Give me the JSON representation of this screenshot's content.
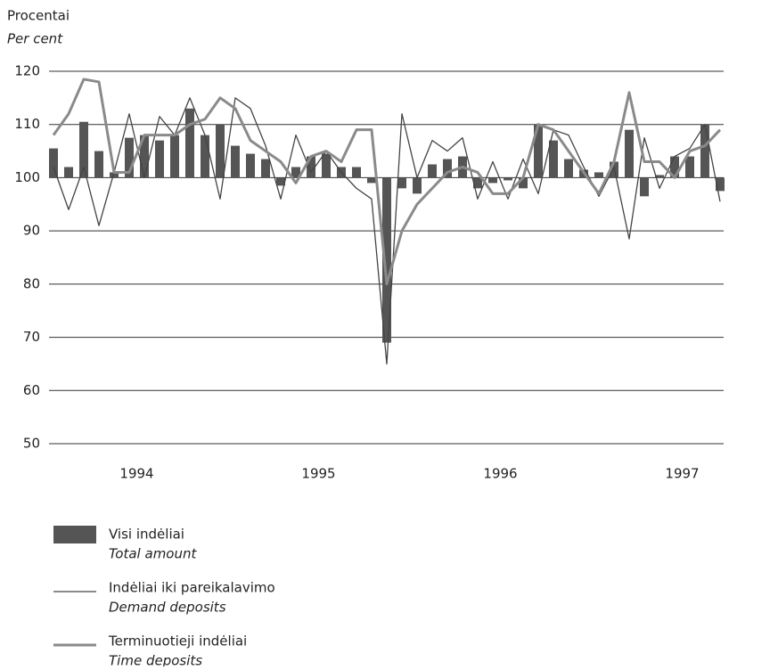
{
  "chart_data": {
    "type": "bar_line",
    "y_axis_label": "Procentai",
    "y_axis_label_en": "Per cent",
    "categories": [
      null,
      null,
      null,
      null,
      null,
      null,
      null,
      null,
      null,
      null,
      null,
      null,
      null,
      null,
      null,
      null,
      null,
      null,
      null,
      null,
      null,
      null,
      null,
      null,
      null,
      null,
      null,
      null,
      null,
      null,
      null,
      null,
      null,
      null,
      null,
      null,
      null,
      null,
      null,
      null,
      null,
      null,
      null,
      null,
      null
    ],
    "x_group_labels": [
      "1994",
      "1995",
      "1996",
      "1997"
    ],
    "ylim": [
      50,
      120
    ],
    "yticks": [
      50,
      60,
      70,
      80,
      90,
      100,
      110,
      120
    ],
    "grid": true,
    "bar_baseline": 100,
    "series": [
      {
        "name": "Visi indėliai",
        "name_en": "Total amount",
        "kind": "bar",
        "color": "#555555",
        "values": [
          105.5,
          102,
          110.5,
          105,
          101,
          107.5,
          108,
          107,
          108,
          113,
          108,
          110,
          106,
          104.5,
          103.5,
          98.5,
          102,
          104,
          104.5,
          102,
          102,
          99,
          69,
          98,
          97,
          102.5,
          103.5,
          104,
          98,
          99,
          99.5,
          98,
          110,
          107,
          103.5,
          101.5,
          101,
          103,
          109,
          96.5,
          100.5,
          104,
          104,
          110,
          97.5
        ]
      },
      {
        "name": "Indėliai iki pareikalavimo",
        "name_en": "Demand deposits",
        "kind": "line",
        "color": "#444444",
        "width": 1.3,
        "values": [
          102,
          94,
          102,
          91,
          101,
          112,
          100,
          111.5,
          108,
          115,
          108,
          96,
          115,
          113,
          106,
          96,
          108,
          101,
          105,
          101,
          98,
          96,
          65,
          112,
          100,
          107,
          105,
          107.5,
          96,
          103,
          96,
          103.5,
          97,
          109,
          108,
          102,
          96.5,
          102,
          88.5,
          107.5,
          98,
          104,
          105.5,
          110,
          95.5
        ]
      },
      {
        "name": "Terminuotieji indėliai",
        "name_en": "Time deposits",
        "kind": "line",
        "color": "#8a8a8a",
        "width": 3,
        "values": [
          108,
          112,
          118.5,
          118,
          101,
          101,
          108,
          108,
          108,
          110,
          111,
          115,
          113,
          107,
          105,
          103,
          99,
          104,
          105,
          103,
          109,
          109,
          80,
          90,
          95,
          98,
          101,
          102,
          101,
          97,
          97,
          100,
          110,
          109,
          105,
          101,
          97,
          103,
          116,
          103,
          103,
          100,
          105,
          106,
          109
        ]
      }
    ]
  }
}
